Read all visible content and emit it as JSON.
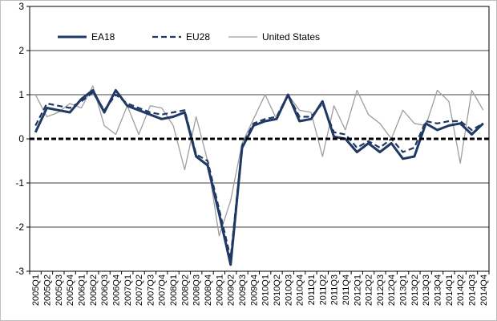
{
  "chart_data": {
    "type": "line",
    "title": "",
    "xlabel": "",
    "ylabel": "",
    "ylim": [
      -3,
      3
    ],
    "yticks": [
      -3,
      -2,
      -1,
      0,
      1,
      2,
      3
    ],
    "ytick_labels": [
      "-3",
      "-2",
      "-1",
      "0",
      "1",
      "2",
      "3"
    ],
    "grid": "horizontal",
    "legend_position": "top-left",
    "zero_line": true,
    "x": [
      "2005Q1",
      "2005Q2",
      "2005Q3",
      "2005Q4",
      "2006Q1",
      "2006Q2",
      "2006Q3",
      "2006Q4",
      "2007Q1",
      "2007Q2",
      "2007Q3",
      "2007Q4",
      "2008Q1",
      "2008Q2",
      "2008Q3",
      "2008Q4",
      "2009Q1",
      "2009Q2",
      "2009Q3",
      "2009Q4",
      "2010Q1",
      "2010Q2",
      "2010Q3",
      "2010Q4",
      "2011Q1",
      "2011Q2",
      "2011Q3",
      "2011Q4",
      "2012Q1",
      "2012Q2",
      "2012Q3",
      "2012Q4",
      "2013Q1",
      "2013Q2",
      "2013Q3",
      "2013Q4",
      "2014Q1",
      "2014Q2",
      "2014Q3",
      "2014Q4"
    ],
    "series": [
      {
        "name": "EA18",
        "color": "#1f3864",
        "style": "solid-thick",
        "values": [
          0.15,
          0.7,
          0.65,
          0.6,
          0.9,
          1.1,
          0.6,
          1.1,
          0.75,
          0.65,
          0.55,
          0.45,
          0.5,
          0.6,
          -0.4,
          -0.6,
          -1.7,
          -2.85,
          -0.2,
          0.3,
          0.4,
          0.45,
          1.0,
          0.4,
          0.45,
          0.85,
          0.05,
          0.0,
          -0.3,
          -0.1,
          -0.3,
          -0.1,
          -0.45,
          -0.4,
          0.35,
          0.2,
          0.3,
          0.35,
          0.1,
          0.35
        ]
      },
      {
        "name": "EU28",
        "color": "#1f3864",
        "style": "dashed",
        "values": [
          0.3,
          0.8,
          0.75,
          0.7,
          0.85,
          1.05,
          0.65,
          1.0,
          0.8,
          0.7,
          0.6,
          0.55,
          0.6,
          0.65,
          -0.35,
          -0.5,
          -1.6,
          -2.7,
          -0.15,
          0.35,
          0.45,
          0.5,
          1.0,
          0.5,
          0.5,
          0.8,
          0.15,
          0.1,
          -0.2,
          -0.05,
          -0.2,
          0.0,
          -0.3,
          -0.2,
          0.4,
          0.35,
          0.4,
          0.4,
          0.2,
          0.35
        ]
      },
      {
        "name": "United States",
        "color": "#9e9e9e",
        "style": "thin",
        "values": [
          1.0,
          0.5,
          0.6,
          0.8,
          0.7,
          1.2,
          0.3,
          0.1,
          0.75,
          0.1,
          0.75,
          0.7,
          0.3,
          -0.7,
          0.5,
          -0.5,
          -2.2,
          -1.4,
          -0.1,
          0.45,
          1.0,
          0.45,
          1.0,
          0.65,
          0.6,
          -0.4,
          0.75,
          0.2,
          1.1,
          0.55,
          0.35,
          0.0,
          0.65,
          0.35,
          0.3,
          1.1,
          0.85,
          -0.55,
          1.1,
          0.65
        ]
      }
    ]
  }
}
